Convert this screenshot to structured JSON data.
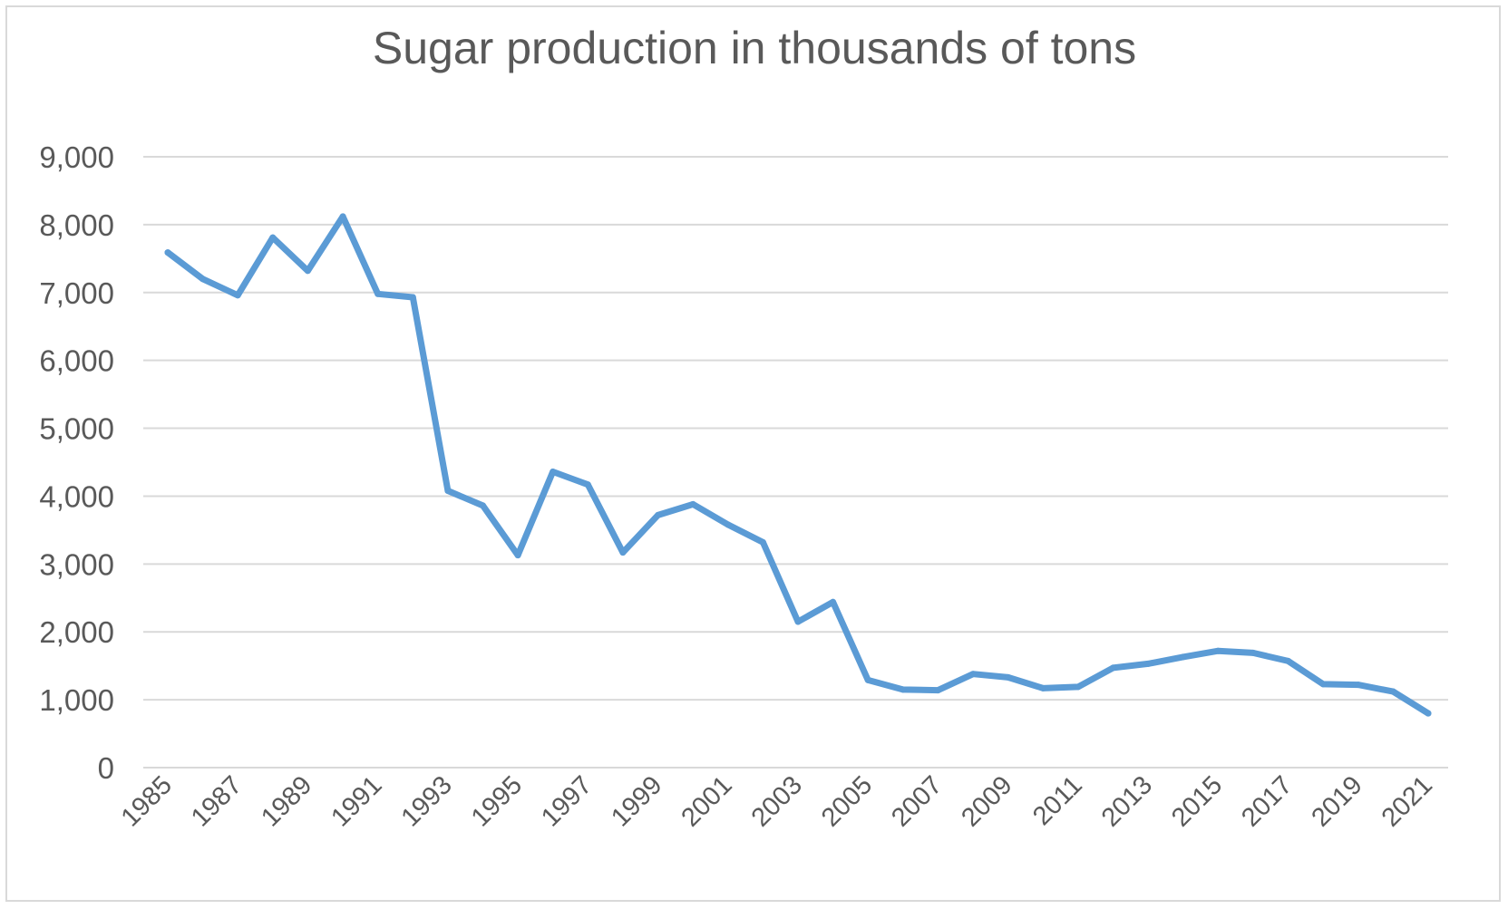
{
  "chart_data": {
    "type": "line",
    "title": "Sugar production in thousands of tons",
    "xlabel": "",
    "ylabel": "",
    "ylim": [
      0,
      9000
    ],
    "yticks": [
      0,
      1000,
      2000,
      3000,
      4000,
      5000,
      6000,
      7000,
      8000,
      9000
    ],
    "ytick_labels": [
      "0",
      "1,000",
      "2,000",
      "3,000",
      "4,000",
      "5,000",
      "6,000",
      "7,000",
      "8,000",
      "9,000"
    ],
    "x": [
      1985,
      1986,
      1987,
      1988,
      1989,
      1990,
      1991,
      1992,
      1993,
      1994,
      1995,
      1996,
      1997,
      1998,
      1999,
      2000,
      2001,
      2002,
      2003,
      2004,
      2005,
      2006,
      2007,
      2008,
      2009,
      2010,
      2011,
      2012,
      2013,
      2014,
      2015,
      2016,
      2017,
      2018,
      2019,
      2020,
      2021
    ],
    "xtick_labels": [
      "1985",
      "1987",
      "1989",
      "1991",
      "1993",
      "1995",
      "1997",
      "1999",
      "2001",
      "2003",
      "2005",
      "2007",
      "2009",
      "2011",
      "2013",
      "2015",
      "2017",
      "2019",
      "2021"
    ],
    "series": [
      {
        "values": [
          7590,
          7200,
          6960,
          7810,
          7320,
          8120,
          6980,
          6930,
          4080,
          3860,
          3130,
          4360,
          4170,
          3170,
          3720,
          3880,
          3580,
          3320,
          2150,
          2440,
          1290,
          1150,
          1140,
          1380,
          1330,
          1170,
          1190,
          1470,
          1530,
          1630,
          1720,
          1690,
          1570,
          1230,
          1220,
          1120,
          800
        ],
        "color": "#5b9bd5"
      }
    ],
    "grid": true,
    "legend": "none"
  }
}
